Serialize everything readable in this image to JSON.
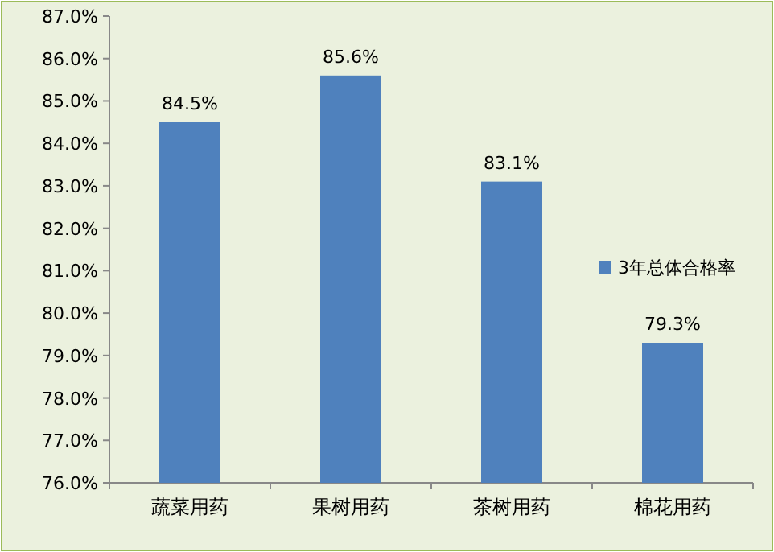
{
  "chart_data": {
    "type": "bar",
    "categories": [
      "蔬菜用药",
      "果树用药",
      "茶树用药",
      "棉花用药"
    ],
    "series": [
      {
        "name": "3年总体合格率",
        "color": "#4f81bd",
        "values": [
          84.5,
          85.6,
          83.1,
          79.3
        ],
        "value_labels": [
          "84.5%",
          "85.6%",
          "83.1%",
          "79.3%"
        ]
      }
    ],
    "ylim": [
      76,
      87
    ],
    "yticks": [
      {
        "value": 76,
        "label": "76.0%"
      },
      {
        "value": 77,
        "label": "77.0%"
      },
      {
        "value": 78,
        "label": "78.0%"
      },
      {
        "value": 79,
        "label": "79.0%"
      },
      {
        "value": 80,
        "label": "80.0%"
      },
      {
        "value": 81,
        "label": "81.0%"
      },
      {
        "value": 82,
        "label": "82.0%"
      },
      {
        "value": 83,
        "label": "83.0%"
      },
      {
        "value": 84,
        "label": "84.0%"
      },
      {
        "value": 85,
        "label": "85.0%"
      },
      {
        "value": 86,
        "label": "86.0%"
      },
      {
        "value": 87,
        "label": "87.0%"
      }
    ],
    "legend": "right",
    "grid": false
  }
}
